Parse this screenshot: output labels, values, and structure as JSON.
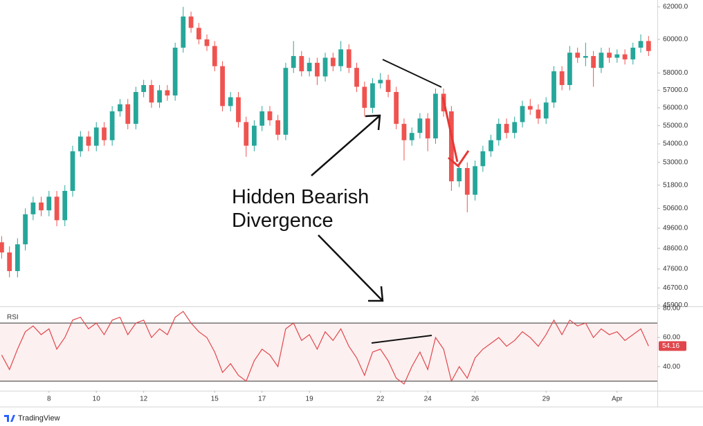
{
  "chart_data": {
    "type": "candlestick",
    "up_color": "#26a69a",
    "down_color": "#ef5350",
    "log_scale": true,
    "x": [
      6,
      6.33,
      6.67,
      7,
      7.33,
      7.67,
      8,
      8.33,
      8.67,
      9,
      9.33,
      9.67,
      10,
      10.33,
      10.67,
      11,
      11.33,
      11.67,
      12,
      12.33,
      12.67,
      13,
      13.33,
      13.67,
      14,
      14.33,
      14.67,
      15,
      15.33,
      15.67,
      16,
      16.33,
      16.67,
      17,
      17.33,
      17.67,
      18,
      18.33,
      18.67,
      19,
      19.33,
      19.67,
      20,
      20.33,
      20.67,
      21,
      21.33,
      21.67,
      22,
      22.33,
      22.67,
      23,
      23.33,
      23.67,
      24,
      24.33,
      24.67,
      25,
      25.33,
      25.67,
      26,
      26.33,
      26.67,
      27,
      27.33,
      27.67,
      28,
      28.33,
      28.67,
      29,
      29.33,
      29.67,
      30,
      30.33,
      30.67,
      31,
      31.33,
      31.67,
      32,
      32.33,
      32.67,
      33,
      33.33
    ],
    "open": [
      48900,
      48400,
      47500,
      48800,
      50300,
      50900,
      50500,
      51200,
      50000,
      51500,
      53600,
      54400,
      53900,
      54900,
      54200,
      55800,
      56200,
      55100,
      56900,
      57300,
      56300,
      57000,
      56700,
      59500,
      61400,
      60700,
      60000,
      59600,
      58400,
      56100,
      56600,
      55200,
      53900,
      55000,
      55800,
      55300,
      54500,
      58300,
      59000,
      58100,
      58600,
      57800,
      58900,
      58400,
      59400,
      58300,
      57200,
      56000,
      57400,
      57600,
      56900,
      55100,
      54200,
      54600,
      55400,
      54300,
      56800,
      55800,
      52000,
      52700,
      51300,
      52800,
      53600,
      54200,
      55100,
      54600,
      55200,
      56100,
      55900,
      55400,
      56300,
      58100,
      57300,
      59200,
      58900,
      59000,
      58300,
      59200,
      58900,
      59100,
      58800,
      59500,
      59900
    ],
    "high": [
      49200,
      48700,
      49100,
      50600,
      51200,
      51200,
      51500,
      51500,
      51800,
      53900,
      54700,
      54700,
      55200,
      55200,
      56100,
      56500,
      56500,
      57200,
      57600,
      57600,
      57300,
      57300,
      59800,
      62000,
      61700,
      61000,
      60300,
      59900,
      58700,
      56900,
      56900,
      55500,
      55300,
      56100,
      56100,
      55600,
      58600,
      59900,
      59300,
      58900,
      58900,
      59200,
      59200,
      59900,
      59700,
      58600,
      57500,
      57700,
      58000,
      57900,
      57200,
      55400,
      54900,
      55700,
      55700,
      57100,
      57100,
      56100,
      53000,
      53000,
      53100,
      53900,
      54500,
      55400,
      55400,
      55500,
      56400,
      56500,
      56200,
      56600,
      58400,
      58400,
      59600,
      59500,
      59800,
      59300,
      59500,
      59500,
      59400,
      59400,
      59800,
      60300,
      60200
    ],
    "low": [
      48100,
      47200,
      47200,
      48500,
      50000,
      50200,
      50200,
      49700,
      49700,
      51200,
      53300,
      53600,
      53600,
      53900,
      53900,
      55500,
      54800,
      54800,
      56600,
      56000,
      56000,
      56400,
      56400,
      59200,
      60400,
      59700,
      59300,
      58100,
      55800,
      55800,
      54900,
      53300,
      53600,
      54700,
      55000,
      54200,
      54200,
      58000,
      57800,
      57800,
      57300,
      57500,
      58100,
      58100,
      58000,
      56900,
      55500,
      55700,
      57100,
      56600,
      54800,
      53100,
      53900,
      54300,
      53600,
      54000,
      55500,
      51500,
      51700,
      50400,
      51000,
      52500,
      53300,
      53900,
      54300,
      54300,
      54900,
      55600,
      55100,
      55100,
      56000,
      57000,
      57000,
      58600,
      58400,
      57200,
      58000,
      58600,
      58600,
      58500,
      58500,
      59200,
      59000
    ],
    "close": [
      48400,
      47500,
      48800,
      50300,
      50900,
      50500,
      51200,
      50000,
      51500,
      53600,
      54400,
      53900,
      54900,
      54200,
      55800,
      56200,
      55100,
      56900,
      57300,
      56300,
      57000,
      56700,
      59500,
      61400,
      60700,
      60000,
      59600,
      58400,
      56100,
      56600,
      55200,
      53900,
      55000,
      55800,
      55300,
      54500,
      58300,
      59000,
      58100,
      58600,
      57800,
      58900,
      58400,
      59400,
      58300,
      57200,
      56000,
      57400,
      57600,
      56900,
      55100,
      54200,
      54600,
      55400,
      54300,
      56800,
      55800,
      52000,
      52700,
      51300,
      52800,
      53600,
      54200,
      55100,
      54600,
      55200,
      56100,
      55900,
      55400,
      56300,
      58100,
      57300,
      59200,
      58900,
      59000,
      58300,
      59200,
      58900,
      59100,
      58800,
      59500,
      59900,
      59300
    ],
    "xlim": [
      5.93,
      33.7
    ],
    "xticks": [
      8,
      10,
      12,
      15,
      17,
      19,
      22,
      24,
      26,
      29,
      {
        "value": 32,
        "label": "Apr"
      }
    ],
    "ylim": [
      45840,
      62430
    ],
    "yticks": [
      {
        "value": 62000,
        "label": "62000.0"
      },
      {
        "value": 60000,
        "label": "60000.0"
      },
      {
        "value": 58000,
        "label": "58000.0"
      },
      {
        "value": 57000,
        "label": "57000.0"
      },
      {
        "value": 56000,
        "label": "56000.0"
      },
      {
        "value": 55000,
        "label": "55000.0"
      },
      {
        "value": 54000,
        "label": "54000.0"
      },
      {
        "value": 53000,
        "label": "53000.0"
      },
      {
        "value": 51800,
        "label": "51800.0"
      },
      {
        "value": 50600,
        "label": "50600.0"
      },
      {
        "value": 49600,
        "label": "49600.0"
      },
      {
        "value": 48600,
        "label": "48600.0"
      },
      {
        "value": 47600,
        "label": "47600.0"
      },
      {
        "value": 46700,
        "label": "46700.0"
      },
      {
        "value": 45900,
        "label": "45900.0"
      }
    ],
    "annotation_lines": [
      "Hidden Bearish",
      "Divergence"
    ],
    "indicator": {
      "name": "RSI",
      "type": "line",
      "color": "#e0474c",
      "values": [
        48,
        38,
        52,
        64,
        68,
        62,
        66,
        52,
        60,
        72,
        74,
        66,
        70,
        62,
        72,
        74,
        62,
        70,
        72,
        60,
        66,
        62,
        74,
        78,
        70,
        64,
        60,
        50,
        36,
        42,
        34,
        30,
        44,
        52,
        48,
        40,
        66,
        70,
        58,
        62,
        52,
        64,
        58,
        66,
        54,
        46,
        34,
        50,
        52,
        44,
        32,
        28,
        40,
        50,
        38,
        60,
        52,
        30,
        40,
        32,
        46,
        52,
        56,
        60,
        54,
        58,
        64,
        60,
        54,
        62,
        72,
        62,
        72,
        68,
        70,
        60,
        66,
        62,
        64,
        58,
        62,
        66,
        54.16
      ],
      "ylim": [
        23.4,
        80.5
      ],
      "yticks": [
        {
          "value": 80,
          "label": "80.00"
        },
        {
          "value": 60,
          "label": "60.00"
        },
        {
          "value": 40,
          "label": "40.00"
        }
      ],
      "bands": [
        70,
        30
      ]
    }
  },
  "footer": {
    "brand": "TradingView"
  }
}
